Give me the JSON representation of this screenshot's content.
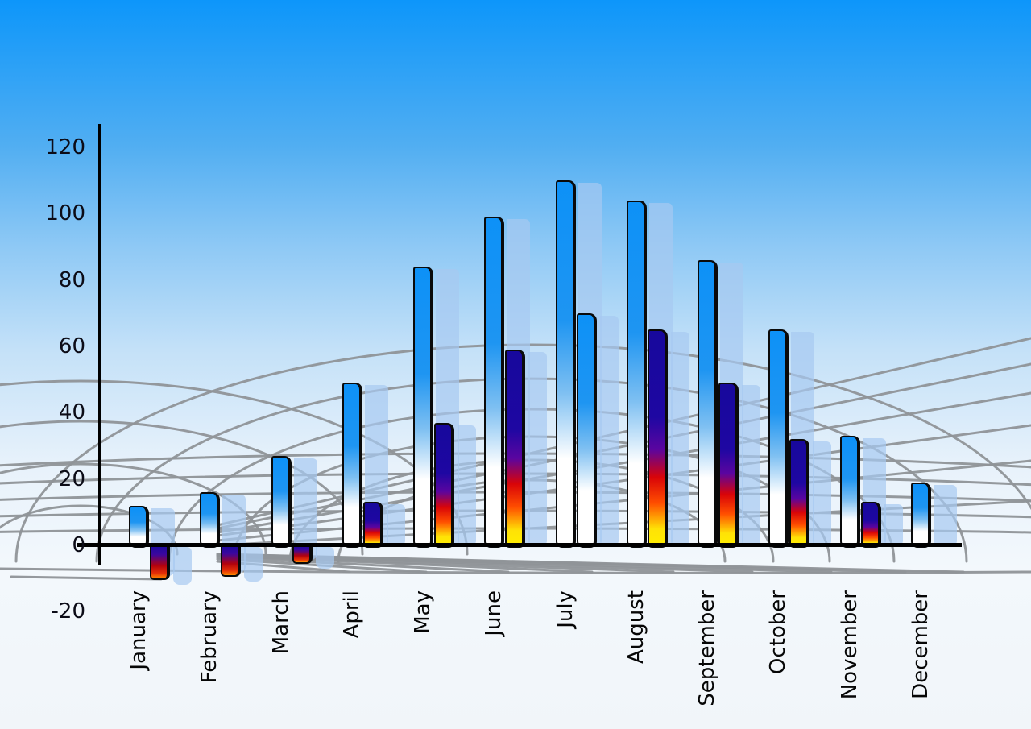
{
  "chart_data": {
    "type": "bar",
    "title": "",
    "xlabel": "",
    "ylabel": "",
    "legend": "none",
    "grid": "perspective-ground-grid-decorative",
    "ylim": [
      -20,
      120
    ],
    "ytick_interval": 20,
    "ytick_labels": [
      "120",
      "100",
      "80",
      "60",
      "40",
      "20",
      "0",
      "-20"
    ],
    "ytick_values": [
      120,
      100,
      80,
      60,
      40,
      20,
      0,
      -20
    ],
    "categories": [
      "January",
      "February",
      "March",
      "April",
      "May",
      "June",
      "July",
      "August",
      "September",
      "October",
      "November",
      "December"
    ],
    "series": [
      {
        "name": "primary-blue-gradient-bars",
        "values": [
          12,
          16,
          27,
          49,
          84,
          99,
          110,
          104,
          86,
          65,
          33,
          19
        ]
      },
      {
        "name": "secondary-flame-gradient-bars",
        "values": [
          -10,
          -9,
          -5,
          13,
          37,
          59,
          70,
          65,
          49,
          32,
          13,
          null
        ],
        "bar_styles": [
          "fire",
          "fire",
          "fire",
          "fire",
          "fire",
          "fire",
          "blue",
          "fire",
          "fire",
          "fire",
          "fire",
          null
        ]
      }
    ]
  },
  "colors": {
    "sky_top": "#0d96fa",
    "sky_bottom": "#f1f5f9",
    "bar_blue_top": "#0d91f7",
    "bar_blue_bottom": "#ffffff",
    "fire_navy": "#17089c",
    "fire_red": "#d90408",
    "fire_orange": "#ff4e00",
    "fire_yellow": "#ffee00",
    "echo_shadow": "#a7c9f1",
    "grid_gray": "#8f9398",
    "axis": "#000000",
    "tick_text": "#0c0c17"
  }
}
